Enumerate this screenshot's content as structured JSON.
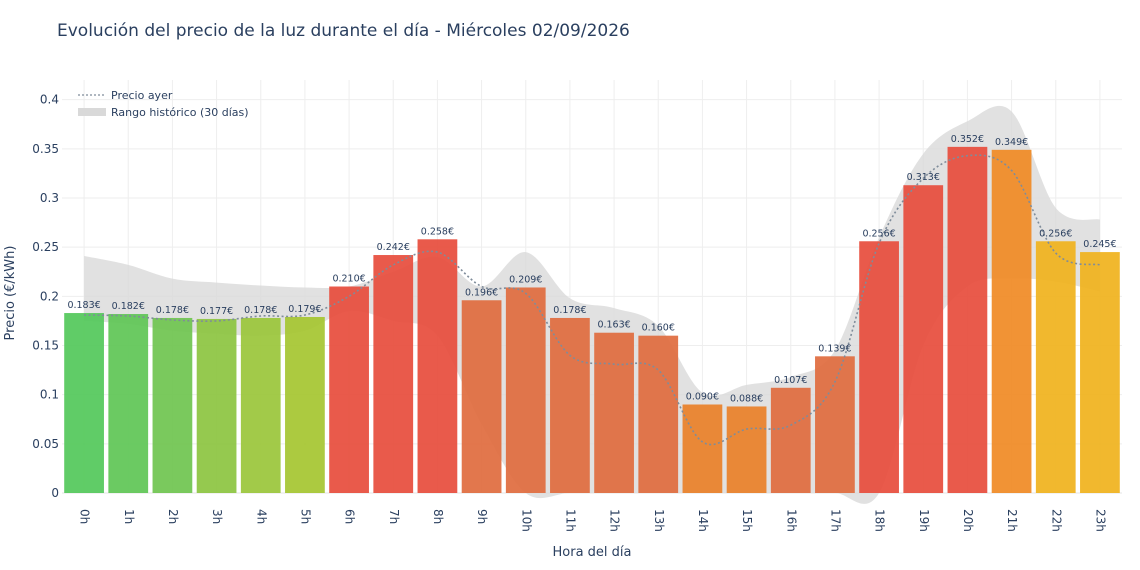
{
  "chart_data": {
    "type": "bar",
    "title": "Evolución del precio de la luz durante el día - Miércoles 02/09/2026",
    "xlabel": "Hora del día",
    "ylabel": "Precio (€/kWh)",
    "ylim": [
      0,
      0.42
    ],
    "yticks": [
      0,
      0.05,
      0.1,
      0.15,
      0.2,
      0.25,
      0.3,
      0.35,
      0.4
    ],
    "ytick_labels": [
      "0",
      "0.05",
      "0.1",
      "0.15",
      "0.2",
      "0.25",
      "0.3",
      "0.35",
      "0.4"
    ],
    "grid": true,
    "legend_position": "top-left",
    "categories": [
      "0h",
      "1h",
      "2h",
      "3h",
      "4h",
      "5h",
      "6h",
      "7h",
      "8h",
      "9h",
      "10h",
      "11h",
      "12h",
      "13h",
      "14h",
      "15h",
      "16h",
      "17h",
      "18h",
      "19h",
      "20h",
      "21h",
      "22h",
      "23h"
    ],
    "values": [
      0.183,
      0.182,
      0.178,
      0.177,
      0.178,
      0.179,
      0.21,
      0.242,
      0.258,
      0.196,
      0.209,
      0.178,
      0.163,
      0.16,
      0.09,
      0.088,
      0.107,
      0.139,
      0.256,
      0.313,
      0.352,
      0.349,
      0.256,
      0.245
    ],
    "value_labels": [
      "0.183€",
      "0.182€",
      "0.178€",
      "0.177€",
      "0.178€",
      "0.179€",
      "0.210€",
      "0.242€",
      "0.258€",
      "0.196€",
      "0.209€",
      "0.178€",
      "0.163€",
      "0.160€",
      "0.090€",
      "0.088€",
      "0.107€",
      "0.139€",
      "0.256€",
      "0.313€",
      "0.352€",
      "0.349€",
      "0.256€",
      "0.245€"
    ],
    "bar_colors": [
      "#52c85a",
      "#5ec655",
      "#6fc44f",
      "#8cc440",
      "#9ac53a",
      "#a5c630",
      "#e74c3c",
      "#e74c3c",
      "#e74c3c",
      "#e06b3e",
      "#e06b3e",
      "#e06b3e",
      "#e06b3e",
      "#e06b3e",
      "#e98028",
      "#e98028",
      "#e06b3e",
      "#e06b3e",
      "#e74c3c",
      "#e74c3c",
      "#e74c3c",
      "#f08a24",
      "#f0b21c",
      "#f0b21c"
    ],
    "series": [
      {
        "name": "Precio ayer",
        "style": "dotted-line",
        "color": "#7f8c9a",
        "values": [
          0.181,
          0.18,
          0.176,
          0.175,
          0.18,
          0.181,
          0.2,
          0.232,
          0.245,
          0.21,
          0.203,
          0.14,
          0.131,
          0.125,
          0.052,
          0.065,
          0.069,
          0.113,
          0.254,
          0.32,
          0.343,
          0.328,
          0.244,
          0.232
        ]
      },
      {
        "name": "Rango histórico (30 días)",
        "style": "band",
        "color": "#d9d9d9",
        "upper": [
          0.241,
          0.232,
          0.218,
          0.214,
          0.211,
          0.209,
          0.21,
          0.225,
          0.24,
          0.21,
          0.245,
          0.198,
          0.188,
          0.17,
          0.102,
          0.11,
          0.118,
          0.145,
          0.26,
          0.345,
          0.378,
          0.388,
          0.29,
          0.278
        ],
        "lower": [
          0.175,
          0.172,
          0.165,
          0.162,
          0.16,
          0.165,
          0.185,
          0.175,
          0.16,
          0.07,
          0.0,
          0.0,
          0.0,
          0.0,
          0.0,
          0.0,
          0.0,
          0.0,
          0.0,
          0.15,
          0.21,
          0.218,
          0.215,
          0.205
        ]
      }
    ]
  }
}
